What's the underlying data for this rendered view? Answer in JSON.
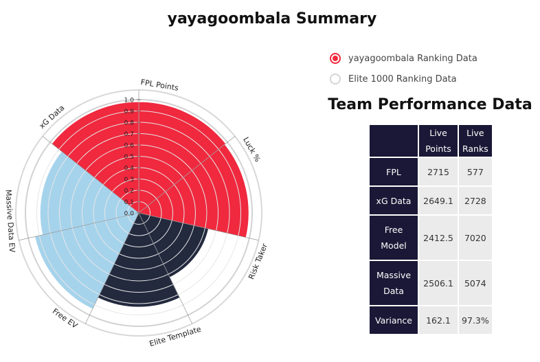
{
  "page": {
    "title": "yayagoombala Summary"
  },
  "legend": [
    {
      "label": "yayagoombala Ranking Data",
      "checked": true
    },
    {
      "label": "Elite 1000 Ranking Data",
      "checked": false
    }
  ],
  "colors": {
    "red": "#f0293e",
    "light_blue": "#a6d3ec",
    "navy": "#232a3e",
    "accent": "#f0293e"
  },
  "table": {
    "title": "Team Performance Data",
    "columns": [
      [
        "Live",
        "Points"
      ],
      [
        "Live",
        "Ranks"
      ]
    ],
    "rows": [
      {
        "label": [
          "FPL"
        ],
        "points": "2715",
        "ranks": "577"
      },
      {
        "label": [
          "xG Data"
        ],
        "points": "2649.1",
        "ranks": "2728"
      },
      {
        "label": [
          "Free",
          "Model"
        ],
        "points": "2412.5",
        "ranks": "7020"
      },
      {
        "label": [
          "Massive",
          "Data"
        ],
        "points": "2506.1",
        "ranks": "5074"
      },
      {
        "label": [
          "Variance"
        ],
        "points": "162.1",
        "ranks": "97.3%"
      }
    ]
  },
  "chart_data": {
    "type": "polar-area",
    "rlim": [
      0,
      1.0
    ],
    "ticks": [
      "0.0",
      "0.1",
      "0.2",
      "0.3",
      "0.4",
      "0.5",
      "0.6",
      "0.7",
      "0.8",
      "0.9",
      "1.0"
    ],
    "categories": [
      "FPL Points",
      "Luck %",
      "Risk Taker",
      "Elite Template",
      "Free EV",
      "Massive Data EV",
      "xG Data"
    ],
    "values": [
      0.98,
      0.97,
      0.63,
      0.83,
      0.94,
      0.87,
      0.98
    ],
    "slice_colors": [
      "#f0293e",
      "#f0293e",
      "#232a3e",
      "#232a3e",
      "#a6d3ec",
      "#a6d3ec",
      "#f0293e"
    ]
  }
}
